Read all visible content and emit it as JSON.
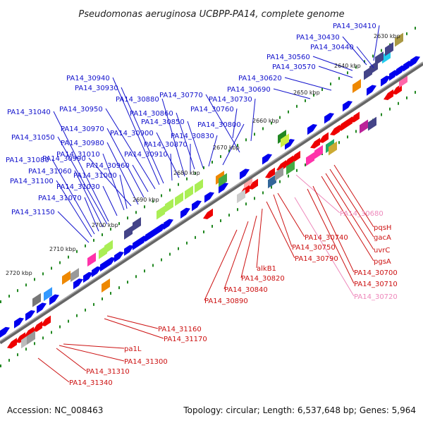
{
  "title": "Pseudomonas aeruginosa UCBPP-PA14, complete genome",
  "accession": "Accession: NC_008463",
  "summary": "Topology: circular; Length: 6,537,648 bp; Genes: 5,964",
  "colors": {
    "forward_label": "#1111cc",
    "reverse_label": "#cc1111",
    "pseudo_label": "#ee88bb",
    "forward_gene": "#0000ee",
    "reverse_gene": "#ee0000",
    "tick_mark": "#228822",
    "backbone": "#666666"
  },
  "kbp_ticks": [
    "2630 kbp",
    "2640 kbp",
    "2650 kbp",
    "2660 kbp",
    "2670 kbp",
    "2680 kbp",
    "2690 kbp",
    "2700 kbp",
    "2710 kbp",
    "2720 kbp"
  ],
  "forward_labels": [
    "PA14_30410",
    "PA14_30430",
    "PA14_30440",
    "PA14_30560",
    "PA14_30570",
    "PA14_30620",
    "PA14_30690",
    "PA14_30730",
    "PA14_30760",
    "PA14_30770",
    "PA14_30800",
    "PA14_30830",
    "PA14_30850",
    "PA14_30860",
    "PA14_30870",
    "PA14_30880",
    "PA14_30900",
    "PA14_30910",
    "PA14_30930",
    "PA14_30940",
    "PA14_30950",
    "PA14_30960",
    "PA14_30970",
    "PA14_30980",
    "PA14_30990",
    "PA14_31000",
    "PA14_31010",
    "PA14_31030",
    "PA14_31040",
    "PA14_31050",
    "PA14_31060",
    "PA14_31070",
    "PA14_31080",
    "PA14_31100",
    "PA14_31150"
  ],
  "reverse_labels": [
    "PA14_30680",
    "pqsH",
    "gacA",
    "uvrC",
    "pgsA",
    "PA14_30700",
    "PA14_30710",
    "PA14_30720",
    "PA14_30740",
    "PA14_30750",
    "PA14_30790",
    "alkB1",
    "PA14_30820",
    "PA14_30840",
    "PA14_30890",
    "PA14_31160",
    "PA14_31170",
    "pa1L",
    "PA14_31300",
    "PA14_31310",
    "PA14_31340"
  ],
  "pseudo_labels": [
    "PA14_30680",
    "PA14_30720"
  ]
}
